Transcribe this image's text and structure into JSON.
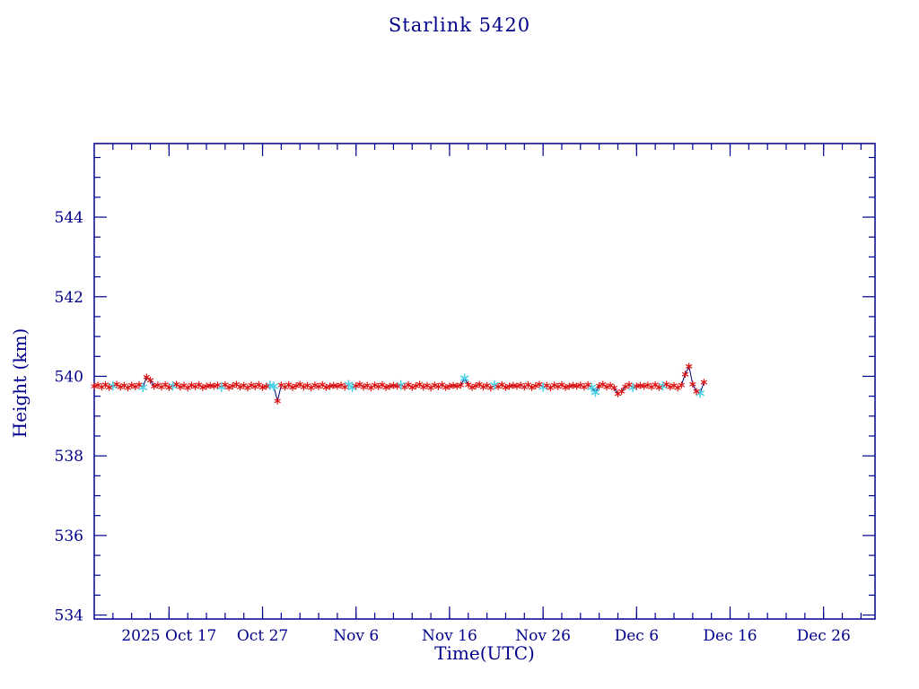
{
  "page": {
    "title": "Starlink 5420"
  },
  "colors": {
    "axis": "#00008B",
    "text": "#00008B",
    "line": "#000070",
    "marker_primary": "#DD1111",
    "marker_secondary": "#4DD2E6",
    "background": "#FFFFFF"
  },
  "chart_data": {
    "type": "line",
    "title": "Starlink 5420",
    "xlabel": "Time(UTC)",
    "ylabel": "Height (km)",
    "ylim": [
      533.9,
      545.85
    ],
    "xlim_days": [
      0,
      83.5
    ],
    "grid": false,
    "legend": "none",
    "y_major_ticks": [
      534,
      536,
      538,
      540,
      542,
      544
    ],
    "y_minor_step": 0.5,
    "x_ticks": [
      {
        "day": 8,
        "label": "2025 Oct 17"
      },
      {
        "day": 18,
        "label": "Oct 27"
      },
      {
        "day": 28,
        "label": "Nov 6"
      },
      {
        "day": 38,
        "label": "Nov 16"
      },
      {
        "day": 48,
        "label": "Nov 26"
      },
      {
        "day": 58,
        "label": "Dec 6"
      },
      {
        "day": 68,
        "label": "Dec 16"
      },
      {
        "day": 78,
        "label": "Dec 26"
      }
    ],
    "x_minor_step": 2,
    "series": [
      {
        "name": "height-km",
        "marker": "asterisk",
        "note": "x is days since start of plotted window; color 0 = red marker, 1 = cyan marker",
        "points": [
          [
            0,
            539.75,
            0
          ],
          [
            0.4,
            539.78,
            0
          ],
          [
            0.8,
            539.73,
            0
          ],
          [
            1.2,
            539.79,
            0
          ],
          [
            1.6,
            539.72,
            0
          ],
          [
            2,
            539.76,
            1
          ],
          [
            2.4,
            539.8,
            0
          ],
          [
            2.8,
            539.73,
            0
          ],
          [
            3.2,
            539.77,
            0
          ],
          [
            3.6,
            539.71,
            0
          ],
          [
            4,
            539.78,
            0
          ],
          [
            4.4,
            539.74,
            0
          ],
          [
            4.8,
            539.79,
            0
          ],
          [
            5.2,
            539.72,
            1
          ],
          [
            5.6,
            539.98,
            0
          ],
          [
            6,
            539.9,
            0
          ],
          [
            6.4,
            539.75,
            0
          ],
          [
            6.8,
            539.78,
            0
          ],
          [
            7.2,
            539.73,
            0
          ],
          [
            7.6,
            539.79,
            0
          ],
          [
            8,
            539.72,
            0
          ],
          [
            8.4,
            539.76,
            1
          ],
          [
            8.8,
            539.8,
            0
          ],
          [
            9.2,
            539.73,
            0
          ],
          [
            9.6,
            539.77,
            0
          ],
          [
            10,
            539.71,
            0
          ],
          [
            10.4,
            539.78,
            0
          ],
          [
            10.8,
            539.74,
            0
          ],
          [
            11.2,
            539.79,
            0
          ],
          [
            11.6,
            539.72,
            0
          ],
          [
            12,
            539.75,
            0
          ],
          [
            12.4,
            539.77,
            0
          ],
          [
            12.8,
            539.75,
            0
          ],
          [
            13.2,
            539.78,
            0
          ],
          [
            13.6,
            539.73,
            1
          ],
          [
            14,
            539.79,
            0
          ],
          [
            14.4,
            539.72,
            0
          ],
          [
            14.8,
            539.76,
            0
          ],
          [
            15.2,
            539.8,
            0
          ],
          [
            15.6,
            539.73,
            0
          ],
          [
            16,
            539.77,
            0
          ],
          [
            16.4,
            539.71,
            0
          ],
          [
            16.8,
            539.78,
            0
          ],
          [
            17.2,
            539.74,
            0
          ],
          [
            17.6,
            539.79,
            0
          ],
          [
            18,
            539.72,
            0
          ],
          [
            18.4,
            539.75,
            0
          ],
          [
            18.8,
            539.77,
            1
          ],
          [
            19.2,
            539.75,
            1
          ],
          [
            19.6,
            539.38,
            0
          ],
          [
            20,
            539.78,
            0
          ],
          [
            20.4,
            539.73,
            0
          ],
          [
            20.8,
            539.79,
            0
          ],
          [
            21.2,
            539.72,
            0
          ],
          [
            21.6,
            539.76,
            0
          ],
          [
            22,
            539.8,
            0
          ],
          [
            22.4,
            539.73,
            0
          ],
          [
            22.8,
            539.77,
            0
          ],
          [
            23.2,
            539.71,
            0
          ],
          [
            23.6,
            539.78,
            0
          ],
          [
            24,
            539.74,
            0
          ],
          [
            24.4,
            539.79,
            0
          ],
          [
            24.8,
            539.72,
            0
          ],
          [
            25.2,
            539.75,
            0
          ],
          [
            25.6,
            539.77,
            0
          ],
          [
            26,
            539.75,
            0
          ],
          [
            26.4,
            539.78,
            0
          ],
          [
            26.8,
            539.73,
            0
          ],
          [
            27.2,
            539.79,
            1
          ],
          [
            27.6,
            539.72,
            1
          ],
          [
            28,
            539.76,
            0
          ],
          [
            28.4,
            539.8,
            0
          ],
          [
            28.8,
            539.73,
            0
          ],
          [
            29.2,
            539.77,
            0
          ],
          [
            29.6,
            539.71,
            0
          ],
          [
            30,
            539.78,
            0
          ],
          [
            30.4,
            539.74,
            0
          ],
          [
            30.8,
            539.79,
            0
          ],
          [
            31.2,
            539.72,
            0
          ],
          [
            31.6,
            539.75,
            0
          ],
          [
            32,
            539.77,
            0
          ],
          [
            32.4,
            539.75,
            0
          ],
          [
            32.8,
            539.78,
            1
          ],
          [
            33.2,
            539.73,
            0
          ],
          [
            33.6,
            539.79,
            0
          ],
          [
            34,
            539.72,
            0
          ],
          [
            34.4,
            539.76,
            0
          ],
          [
            34.8,
            539.8,
            0
          ],
          [
            35.2,
            539.73,
            0
          ],
          [
            35.6,
            539.77,
            0
          ],
          [
            36,
            539.71,
            0
          ],
          [
            36.4,
            539.78,
            0
          ],
          [
            36.8,
            539.74,
            0
          ],
          [
            37.2,
            539.79,
            0
          ],
          [
            37.6,
            539.72,
            0
          ],
          [
            38,
            539.75,
            0
          ],
          [
            38.4,
            539.77,
            0
          ],
          [
            38.8,
            539.75,
            0
          ],
          [
            39.2,
            539.78,
            0
          ],
          [
            39.6,
            539.95,
            1
          ],
          [
            40,
            539.79,
            0
          ],
          [
            40.4,
            539.72,
            0
          ],
          [
            40.8,
            539.76,
            0
          ],
          [
            41.2,
            539.8,
            0
          ],
          [
            41.6,
            539.73,
            0
          ],
          [
            42,
            539.77,
            0
          ],
          [
            42.4,
            539.71,
            0
          ],
          [
            42.8,
            539.78,
            1
          ],
          [
            43.2,
            539.74,
            0
          ],
          [
            43.6,
            539.79,
            0
          ],
          [
            44,
            539.72,
            0
          ],
          [
            44.4,
            539.75,
            0
          ],
          [
            44.8,
            539.77,
            0
          ],
          [
            45.2,
            539.75,
            0
          ],
          [
            45.6,
            539.78,
            0
          ],
          [
            46,
            539.73,
            0
          ],
          [
            46.4,
            539.79,
            0
          ],
          [
            46.8,
            539.72,
            0
          ],
          [
            47.2,
            539.76,
            0
          ],
          [
            47.6,
            539.8,
            0
          ],
          [
            48,
            539.73,
            1
          ],
          [
            48.4,
            539.77,
            0
          ],
          [
            48.8,
            539.71,
            0
          ],
          [
            49.2,
            539.78,
            0
          ],
          [
            49.6,
            539.74,
            0
          ],
          [
            50,
            539.79,
            0
          ],
          [
            50.4,
            539.72,
            0
          ],
          [
            50.8,
            539.75,
            0
          ],
          [
            51.2,
            539.77,
            0
          ],
          [
            51.6,
            539.75,
            0
          ],
          [
            52,
            539.78,
            0
          ],
          [
            52.4,
            539.73,
            0
          ],
          [
            52.8,
            539.79,
            0
          ],
          [
            53.2,
            539.72,
            1
          ],
          [
            53.6,
            539.6,
            1
          ],
          [
            54,
            539.76,
            0
          ],
          [
            54.4,
            539.8,
            0
          ],
          [
            54.8,
            539.73,
            0
          ],
          [
            55.2,
            539.77,
            0
          ],
          [
            55.6,
            539.71,
            0
          ],
          [
            56,
            539.56,
            0
          ],
          [
            56.4,
            539.62,
            0
          ],
          [
            56.8,
            539.74,
            0
          ],
          [
            57.2,
            539.79,
            0
          ],
          [
            57.6,
            539.72,
            1
          ],
          [
            58,
            539.75,
            0
          ],
          [
            58.4,
            539.77,
            0
          ],
          [
            58.8,
            539.75,
            0
          ],
          [
            59.2,
            539.78,
            0
          ],
          [
            59.6,
            539.73,
            0
          ],
          [
            60,
            539.79,
            0
          ],
          [
            60.4,
            539.72,
            0
          ],
          [
            60.8,
            539.76,
            1
          ],
          [
            61.2,
            539.8,
            0
          ],
          [
            61.6,
            539.73,
            0
          ],
          [
            62,
            539.77,
            0
          ],
          [
            62.4,
            539.71,
            0
          ],
          [
            62.8,
            539.78,
            0
          ],
          [
            63.2,
            540.05,
            0
          ],
          [
            63.6,
            540.25,
            0
          ],
          [
            64,
            539.8,
            0
          ],
          [
            64.4,
            539.62,
            0
          ],
          [
            64.8,
            539.58,
            1
          ],
          [
            65.2,
            539.85,
            0
          ]
        ]
      }
    ]
  }
}
